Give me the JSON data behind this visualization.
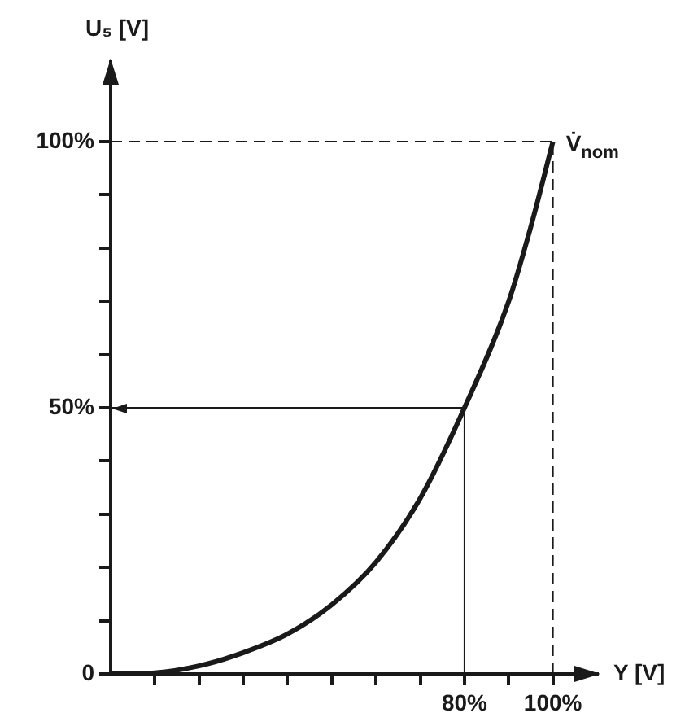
{
  "chart_data": {
    "type": "line",
    "xlabel": "Y [V]",
    "ylabel": "U₅ [V]",
    "x": [
      0,
      10,
      20,
      30,
      40,
      50,
      60,
      70,
      80,
      90,
      95,
      100
    ],
    "series": [
      {
        "color": "#1a1a1a",
        "values": [
          0,
          0.2,
          1.5,
          4,
          7.5,
          13,
          21,
          33,
          50,
          70,
          84,
          100
        ]
      }
    ],
    "xlim": [
      0,
      110
    ],
    "ylim": [
      0,
      115
    ],
    "xticks": [
      {
        "value": 10,
        "label": null
      },
      {
        "value": 20,
        "label": null
      },
      {
        "value": 30,
        "label": null
      },
      {
        "value": 40,
        "label": null
      },
      {
        "value": 50,
        "label": null
      },
      {
        "value": 60,
        "label": null
      },
      {
        "value": 70,
        "label": null
      },
      {
        "value": 80,
        "label": "80%"
      },
      {
        "value": 90,
        "label": null
      },
      {
        "value": 100,
        "label": "100%"
      }
    ],
    "yticks": [
      0,
      {
        "value": 10,
        "label": null
      },
      {
        "value": 20,
        "label": null
      },
      {
        "value": 30,
        "label": null
      },
      {
        "value": 40,
        "label": null
      },
      {
        "value": 50,
        "label": "50%"
      },
      {
        "value": 60,
        "label": null
      },
      {
        "value": 70,
        "label": null
      },
      {
        "value": 80,
        "label": null
      },
      {
        "value": 90,
        "label": null
      },
      {
        "value": 100,
        "label": "100%"
      }
    ],
    "ref_lines": [
      {
        "axis": "y",
        "value": 100,
        "line_style": "dashed"
      },
      {
        "axis": "x",
        "value": 100,
        "line_style": "dashed"
      },
      {
        "axis": "x",
        "value": 80,
        "line_style": "solid"
      },
      {
        "axis": "y",
        "value": 50,
        "line_style": "solid"
      }
    ],
    "annotations": [
      {
        "text": "V̇$_{nom}$",
        "x": 100,
        "y": 100
      }
    ],
    "grid": false,
    "legend": false,
    "marker": "none",
    "line_style": "solid"
  }
}
